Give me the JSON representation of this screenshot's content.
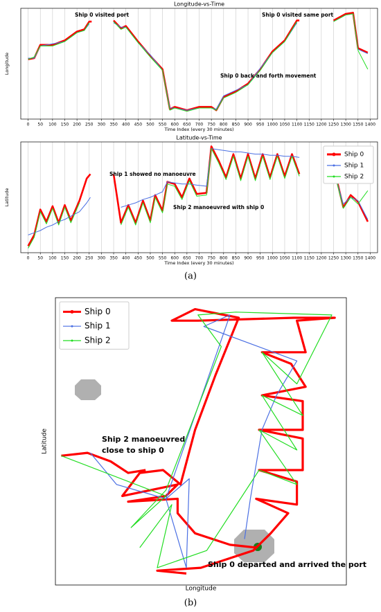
{
  "captions": [
    "(a)",
    "(b)"
  ],
  "chart_data": [
    {
      "type": "line",
      "title": "Longitude-vs-Time",
      "xlabel": "Time Index (every 30 minutes)",
      "ylabel": "Longitude",
      "annotations": [
        "Ship 0 visited port",
        "Ship 0 visited same port",
        "Ship 0 back and forth movement"
      ],
      "xlim": [
        -30,
        1430
      ],
      "ylim": [
        0,
        100
      ],
      "grid": true,
      "xticks": [
        0,
        50,
        100,
        150,
        200,
        250,
        300,
        350,
        400,
        450,
        500,
        550,
        600,
        650,
        700,
        750,
        800,
        850,
        900,
        950,
        1000,
        1050,
        1100,
        1150,
        1200,
        1250,
        1300,
        1350,
        1400
      ],
      "x": [
        0,
        25,
        50,
        100,
        150,
        200,
        230,
        250,
        260,
        300,
        350,
        380,
        400,
        450,
        500,
        550,
        580,
        600,
        650,
        700,
        750,
        770,
        800,
        850,
        900,
        950,
        1000,
        1050,
        1100,
        1110,
        1180,
        1250,
        1300,
        1330,
        1350,
        1390
      ],
      "series": [
        {
          "name": "Ship 0",
          "color": "#ff0000",
          "values": [
            54,
            55,
            67,
            67,
            71,
            79,
            81,
            88,
            88,
            null,
            89,
            82,
            84,
            70,
            57,
            45,
            9,
            11,
            8,
            11,
            11,
            8,
            20,
            25,
            32,
            45,
            61,
            71,
            89,
            89,
            null,
            89,
            95,
            96,
            64,
            60
          ]
        },
        {
          "name": "Ship 1",
          "color": "#4a6fe3",
          "values": [
            55,
            55,
            66,
            68,
            70,
            78,
            80,
            86,
            null,
            null,
            87,
            83,
            83,
            69,
            58,
            44,
            10,
            10,
            8,
            10,
            10,
            9,
            21,
            26,
            31,
            46,
            60,
            70,
            87,
            null,
            null,
            88,
            94,
            95,
            63,
            59
          ]
        },
        {
          "name": "Ship 2",
          "color": "#22dd22",
          "values": [
            54,
            56,
            66,
            66,
            70,
            78,
            80,
            87,
            null,
            null,
            88,
            81,
            83,
            69,
            56,
            44,
            8,
            10,
            7,
            10,
            10,
            8,
            19,
            24,
            31,
            44,
            60,
            70,
            88,
            null,
            null,
            88,
            94,
            95,
            62,
            45
          ]
        }
      ]
    },
    {
      "type": "line",
      "title": "Latitude-vs-Time",
      "xlabel": "Time Index (every 30 minutes)",
      "ylabel": "Latitude",
      "annotations": [
        "Ship 1 showed no manoeuvre",
        "Ship 2 manoeuvred with ship 0"
      ],
      "xlim": [
        -30,
        1430
      ],
      "ylim": [
        0,
        100
      ],
      "grid": true,
      "legend": "upper right",
      "xticks": [
        0,
        50,
        100,
        150,
        200,
        250,
        300,
        350,
        400,
        450,
        500,
        550,
        600,
        650,
        700,
        750,
        800,
        850,
        900,
        950,
        1000,
        1050,
        1100,
        1150,
        1200,
        1250,
        1300,
        1350,
        1400
      ],
      "x": [
        0,
        25,
        50,
        75,
        100,
        125,
        150,
        175,
        210,
        240,
        255,
        300,
        350,
        380,
        410,
        440,
        470,
        500,
        520,
        550,
        570,
        600,
        630,
        660,
        690,
        730,
        750,
        780,
        810,
        840,
        870,
        900,
        930,
        960,
        990,
        1020,
        1050,
        1080,
        1110,
        1180,
        1260,
        1290,
        1320,
        1350,
        1390
      ],
      "series": [
        {
          "name": "Ship 0",
          "color": "#ff0000",
          "values": [
            6,
            16,
            39,
            28,
            42,
            27,
            43,
            29,
            47,
            67,
            71,
            null,
            71,
            27,
            43,
            27,
            47,
            29,
            52,
            38,
            64,
            62,
            50,
            67,
            53,
            54,
            96,
            83,
            68,
            89,
            67,
            89,
            67,
            89,
            68,
            89,
            69,
            89,
            71,
            null,
            69,
            41,
            52,
            46,
            28
          ]
        },
        {
          "name": "Ship 1",
          "color": "#4a6fe3",
          "values": [
            16,
            18,
            20,
            23,
            25,
            28,
            30,
            33,
            37,
            45,
            50,
            null,
            null,
            41,
            43,
            45,
            48,
            50,
            52,
            55,
            64,
            63,
            62,
            62,
            61,
            60,
            94,
            93,
            92,
            91,
            91,
            90,
            89,
            89,
            88,
            88,
            87,
            87,
            86,
            null,
            67,
            44,
            50,
            47,
            30
          ]
        },
        {
          "name": "Ship 2",
          "color": "#22dd22",
          "values": [
            4,
            14,
            37,
            26,
            40,
            25,
            41,
            27,
            45,
            null,
            null,
            null,
            null,
            25,
            41,
            25,
            45,
            27,
            50,
            36,
            62,
            60,
            48,
            65,
            51,
            52,
            94,
            81,
            66,
            87,
            65,
            87,
            65,
            87,
            66,
            87,
            67,
            87,
            69,
            null,
            67,
            40,
            50,
            44,
            56
          ]
        }
      ]
    },
    {
      "type": "trajectory",
      "xlabel": "Longitude",
      "ylabel": "Latitude",
      "annotations": [
        "Ship 2 manoeuvred",
        "close to ship 0",
        "Ship 0 departed and arrived the port"
      ],
      "xlim": [
        0,
        100
      ],
      "ylim": [
        0,
        100
      ],
      "legend": "upper left",
      "series": [
        {
          "name": "Ship 0",
          "color": "#ff0000",
          "x": [
            69,
            60,
            48,
            42,
            42,
            25,
            38,
            42,
            23,
            29,
            37,
            43,
            48,
            55,
            63,
            48,
            40,
            49,
            82,
            96,
            83,
            86,
            71,
            81,
            86,
            71,
            85,
            85,
            70,
            85,
            85,
            70,
            83,
            83,
            69,
            80,
            74,
            68,
            50,
            35,
            45,
            null,
            2,
            11,
            19,
            25,
            31
          ],
          "y": [
            13,
            14,
            18,
            25,
            30,
            29,
            31,
            35,
            31,
            39,
            40,
            35,
            54,
            73,
            93,
            96,
            92,
            92,
            93,
            93,
            92,
            81,
            81,
            77,
            69,
            66,
            64,
            54,
            54,
            51,
            40,
            40,
            36,
            28,
            30,
            25,
            18,
            12,
            6,
            5,
            4,
            null,
            45,
            46,
            43,
            39,
            40
          ]
        },
        {
          "name": "Ship 1",
          "color": "#4a6fe3",
          "x": [
            12,
            21,
            38,
            46,
            45,
            38,
            60,
            51,
            83,
            76,
            71,
            67,
            65
          ],
          "y": [
            46,
            35,
            30,
            37,
            6,
            30,
            94,
            90,
            78,
            66,
            54,
            30,
            16
          ]
        },
        {
          "name": "Ship 2",
          "color": "#22dd22",
          "x": [
            2,
            38,
            26,
            38,
            57,
            49,
            62,
            95,
            83,
            71,
            85,
            71,
            83,
            70,
            83,
            70,
            52,
            35,
            40,
            29
          ],
          "y": [
            45,
            31,
            20,
            33,
            83,
            94,
            95,
            94,
            70,
            81,
            59,
            66,
            47,
            54,
            35,
            40,
            12,
            6,
            28,
            13
          ]
        }
      ]
    }
  ]
}
